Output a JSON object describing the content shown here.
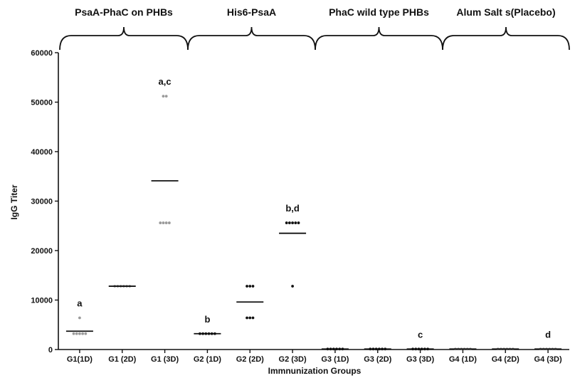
{
  "chart_data": {
    "type": "scatter",
    "title": "",
    "xlabel": "Immnunization Groups",
    "ylabel": "IgG Titer",
    "ylim": [
      0,
      60000
    ],
    "yticks": [
      0,
      10000,
      20000,
      30000,
      40000,
      50000,
      60000
    ],
    "grid": false,
    "group_labels": [
      {
        "label": "PsaA-PhaC on PHBs",
        "from": 0,
        "to": 2
      },
      {
        "label": "His6-PsaA",
        "from": 3,
        "to": 5
      },
      {
        "label": "PhaC wild type PHBs",
        "from": 6,
        "to": 8
      },
      {
        "label": "Alum Salt s(Placebo)",
        "from": 9,
        "to": 11
      }
    ],
    "categories": [
      "G1(1D)",
      "G1 (2D)",
      "G1 (3D)",
      "G2 (1D)",
      "G2 (2D)",
      "G2 (3D)",
      "G3 (1D)",
      "G3 (2D)",
      "G3 (3D)",
      "G4 (1D)",
      "G4 (2D)",
      "G4 (3D)"
    ],
    "points": [
      {
        "values": [
          6400,
          3200,
          3200,
          3200,
          3200,
          3200
        ],
        "mean": 3700,
        "color": "#9a9a9a",
        "annotation": "a"
      },
      {
        "values": [
          12800,
          12800,
          12800,
          12800,
          12800,
          12800
        ],
        "mean": 12800,
        "color": "#9a9a9a",
        "annotation": ""
      },
      {
        "values": [
          51200,
          51200,
          25600,
          25600,
          25600,
          25600
        ],
        "mean": 34100,
        "color": "#9a9a9a",
        "annotation": "a,c"
      },
      {
        "values": [
          3200,
          3200,
          3200,
          3200,
          3200,
          3200
        ],
        "mean": 3200,
        "color": "#111111",
        "annotation": "b"
      },
      {
        "values": [
          12800,
          12800,
          12800,
          6400,
          6400,
          6400
        ],
        "mean": 9600,
        "color": "#111111",
        "annotation": ""
      },
      {
        "values": [
          25600,
          25600,
          25600,
          25600,
          25600,
          12800
        ],
        "mean": 23500,
        "color": "#111111",
        "annotation": "b,d"
      },
      {
        "values": [
          100,
          100,
          100,
          100,
          100,
          100
        ],
        "mean": 100,
        "color": "#111111",
        "annotation": ""
      },
      {
        "values": [
          100,
          100,
          100,
          100,
          100,
          100
        ],
        "mean": 100,
        "color": "#111111",
        "annotation": ""
      },
      {
        "values": [
          100,
          100,
          100,
          100,
          100,
          100
        ],
        "mean": 100,
        "color": "#111111",
        "annotation": "c"
      },
      {
        "values": [
          100,
          100,
          100,
          100,
          100,
          100
        ],
        "mean": 100,
        "color": "#9a9a9a",
        "annotation": ""
      },
      {
        "values": [
          100,
          100,
          100,
          100,
          100,
          100
        ],
        "mean": 100,
        "color": "#9a9a9a",
        "annotation": ""
      },
      {
        "values": [
          100,
          100,
          100,
          100,
          100,
          100
        ],
        "mean": 100,
        "color": "#9a9a9a",
        "annotation": "d"
      }
    ]
  }
}
